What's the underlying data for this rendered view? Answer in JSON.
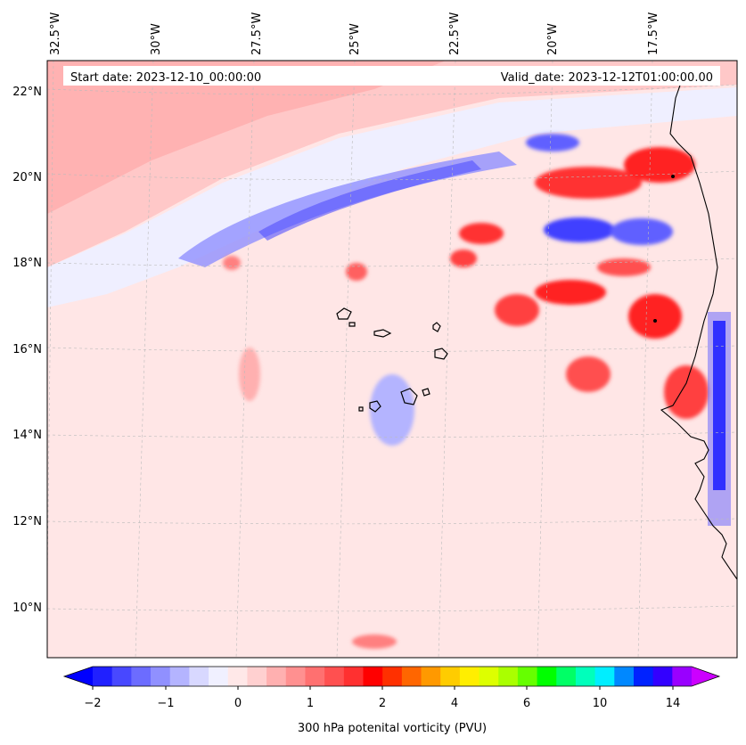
{
  "header": {
    "start_date": "Start date: 2023-12-10_00:00:00",
    "valid_date": "Valid_date: 2023-12-12T01:00:00.00"
  },
  "map": {
    "lon_labels": [
      "32.5°W",
      "30°W",
      "27.5°W",
      "25°W",
      "22.5°W",
      "20°W",
      "17.5°W"
    ],
    "lat_labels": [
      "22°N",
      "20°N",
      "18°N",
      "16°N",
      "14°N",
      "12°N",
      "10°N"
    ]
  },
  "colorbar": {
    "ticks": [
      "−2",
      "−1",
      "0",
      "1",
      "2",
      "4",
      "6",
      "10",
      "14"
    ],
    "label": "300 hPa potenital vorticity (PVU)",
    "colors": [
      "#0000ff",
      "#2020ff",
      "#4848ff",
      "#6c6cff",
      "#9090ff",
      "#b4b4ff",
      "#d8d8ff",
      "#f0f0ff",
      "#ffe8e8",
      "#ffd0d0",
      "#ffb0b0",
      "#ff9090",
      "#ff7070",
      "#ff5050",
      "#ff3030",
      "#ff0000",
      "#ff3000",
      "#ff6600",
      "#ff9900",
      "#ffcc00",
      "#ffee00",
      "#ddff00",
      "#aaff00",
      "#66ff00",
      "#00ff00",
      "#00ff66",
      "#00ffbb",
      "#00eeff",
      "#0088ff",
      "#0022ff",
      "#3300ff",
      "#9900ff",
      "#cc00ff"
    ]
  }
}
